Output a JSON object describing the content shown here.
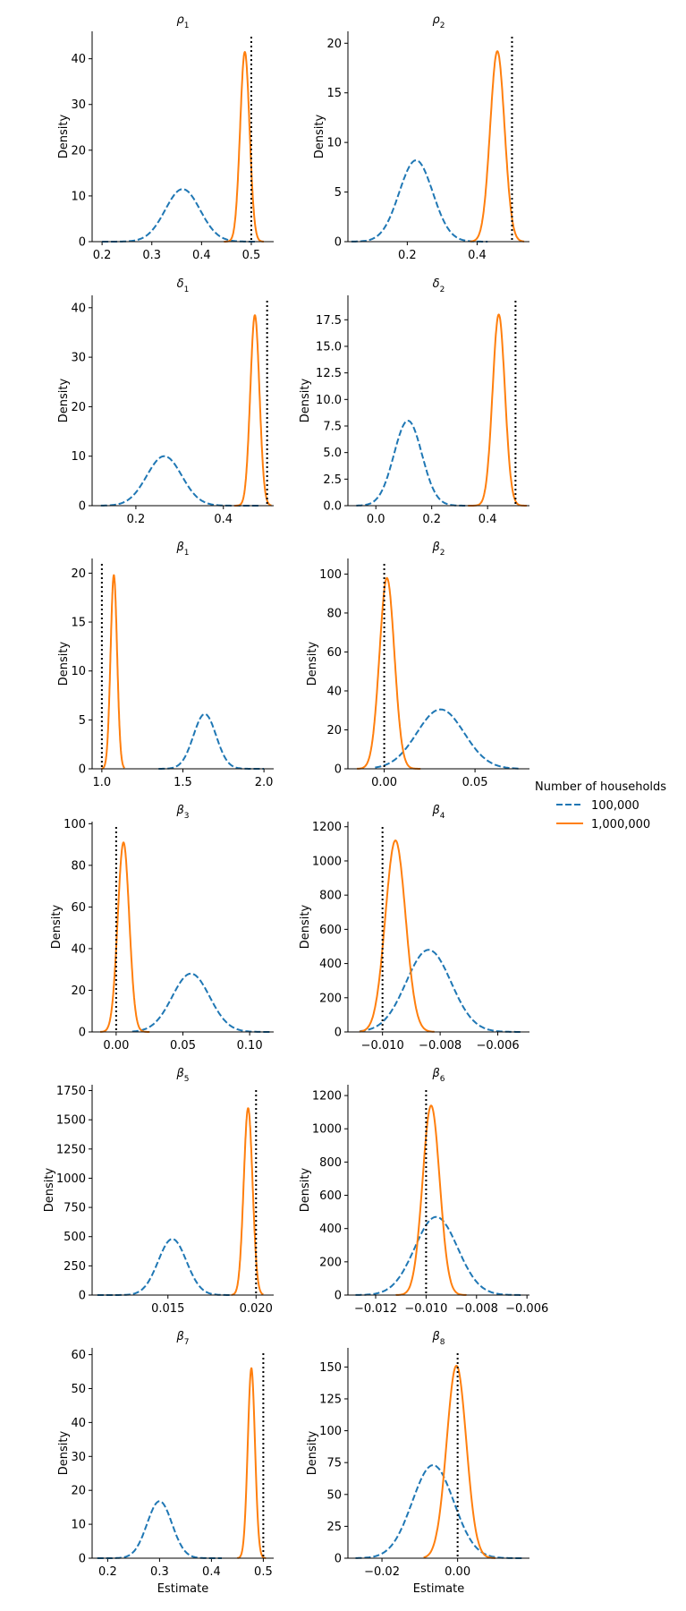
{
  "legend": {
    "title": "Number of households",
    "items": [
      {
        "label": "100,000",
        "color": "#1f77b4",
        "dash": true
      },
      {
        "label": "1,000,000",
        "color": "#ff7f0e",
        "dash": false
      }
    ]
  },
  "chart_data": [
    {
      "type": "line",
      "title_sym": "ρ",
      "title_sub": "1",
      "ylabel": "Density",
      "xlabel": "",
      "xlim": [
        0.18,
        0.545
      ],
      "ylim": [
        0,
        46
      ],
      "xticks": [
        0.2,
        0.3,
        0.4,
        0.5
      ],
      "xtick_labels": [
        "0.2",
        "0.3",
        "0.4",
        "0.5"
      ],
      "yticks": [
        0,
        10,
        20,
        30,
        40
      ],
      "ytick_labels": [
        "0",
        "10",
        "20",
        "30",
        "40"
      ],
      "truth": 0.5,
      "series": [
        {
          "name": "100,000",
          "peaks": [
            [
              0.362,
              0.035,
              11.5
            ]
          ],
          "range": [
            0.2,
            0.51
          ]
        },
        {
          "name": "1,000,000",
          "peaks": [
            [
              0.487,
              0.0094,
              41.5
            ]
          ],
          "range": [
            0.445,
            0.525
          ]
        }
      ]
    },
    {
      "type": "line",
      "title_sym": "ρ",
      "title_sub": "2",
      "ylabel": "Density",
      "xlabel": "",
      "xlim": [
        0.03,
        0.55
      ],
      "ylim": [
        0,
        21.2
      ],
      "xticks": [
        0.2,
        0.4
      ],
      "xtick_labels": [
        "0.2",
        "0.4"
      ],
      "yticks": [
        0,
        5,
        10,
        15,
        20
      ],
      "ytick_labels": [
        "0",
        "5",
        "10",
        "15",
        "20"
      ],
      "truth": 0.5,
      "series": [
        {
          "name": "100,000",
          "peaks": [
            [
              0.225,
              0.048,
              8.2
            ]
          ],
          "range": [
            0.04,
            0.43
          ]
        },
        {
          "name": "1,000,000",
          "peaks": [
            [
              0.458,
              0.0205,
              19.2
            ]
          ],
          "range": [
            0.38,
            0.535
          ]
        }
      ]
    },
    {
      "type": "line",
      "title_sym": "δ",
      "title_sub": "1",
      "ylabel": "Density",
      "xlabel": "",
      "xlim": [
        0.1,
        0.515
      ],
      "ylim": [
        0,
        42.5
      ],
      "xticks": [
        0.2,
        0.4
      ],
      "xtick_labels": [
        "0.2",
        "0.4"
      ],
      "yticks": [
        0,
        10,
        20,
        30,
        40
      ],
      "ytick_labels": [
        "0",
        "10",
        "20",
        "30",
        "40"
      ],
      "truth": 0.5,
      "series": [
        {
          "name": "100,000",
          "peaks": [
            [
              0.265,
              0.04,
              10.0
            ]
          ],
          "range": [
            0.12,
            0.48
          ]
        },
        {
          "name": "1,000,000",
          "peaks": [
            [
              0.472,
              0.0104,
              38.5
            ]
          ],
          "range": [
            0.425,
            0.51
          ]
        }
      ]
    },
    {
      "type": "line",
      "title_sym": "δ",
      "title_sub": "2",
      "ylabel": "Density",
      "xlabel": "",
      "xlim": [
        -0.1,
        0.55
      ],
      "ylim": [
        0,
        19.8
      ],
      "xticks": [
        0.0,
        0.2,
        0.4
      ],
      "xtick_labels": [
        "0.0",
        "0.2",
        "0.4"
      ],
      "yticks": [
        0,
        2.5,
        5.0,
        7.5,
        10.0,
        12.5,
        15.0,
        17.5
      ],
      "ytick_labels": [
        "0.0",
        "2.5",
        "5.0",
        "7.5",
        "10.0",
        "12.5",
        "15.0",
        "17.5"
      ],
      "truth": 0.5,
      "series": [
        {
          "name": "100,000",
          "peaks": [
            [
              0.115,
              0.05,
              8.0
            ]
          ],
          "range": [
            -0.07,
            0.32
          ]
        },
        {
          "name": "1,000,000",
          "peaks": [
            [
              0.44,
              0.022,
              18.0
            ]
          ],
          "range": [
            0.33,
            0.54
          ]
        }
      ]
    },
    {
      "type": "line",
      "title_sym": "β",
      "title_sub": "1",
      "ylabel": "Density",
      "xlabel": "",
      "xlim": [
        0.94,
        2.06
      ],
      "ylim": [
        0,
        21.5
      ],
      "xticks": [
        1.0,
        1.5,
        2.0
      ],
      "xtick_labels": [
        "1.0",
        "1.5",
        "2.0"
      ],
      "yticks": [
        0,
        5,
        10,
        15,
        20
      ],
      "ytick_labels": [
        "0",
        "5",
        "10",
        "15",
        "20"
      ],
      "truth": 1.0,
      "series": [
        {
          "name": "100,000",
          "peaks": [
            [
              1.635,
              0.07,
              5.6
            ]
          ],
          "range": [
            1.35,
            2.0
          ]
        },
        {
          "name": "1,000,000",
          "peaks": [
            [
              1.074,
              0.02,
              19.8
            ]
          ],
          "range": [
            1.0,
            1.14
          ]
        }
      ]
    },
    {
      "type": "line",
      "title_sym": "β",
      "title_sub": "2",
      "ylabel": "Density",
      "xlabel": "",
      "xlim": [
        -0.02,
        0.08
      ],
      "ylim": [
        0,
        108
      ],
      "xticks": [
        0.0,
        0.05
      ],
      "xtick_labels": [
        "0.00",
        "0.05"
      ],
      "yticks": [
        0,
        20,
        40,
        60,
        80,
        100
      ],
      "ytick_labels": [
        "0",
        "20",
        "40",
        "60",
        "80",
        "100"
      ],
      "truth": 0.0,
      "series": [
        {
          "name": "100,000",
          "peaks": [
            [
              0.031,
              0.013,
              30.5
            ]
          ],
          "range": [
            -0.005,
            0.075
          ]
        },
        {
          "name": "1,000,000",
          "peaks": [
            [
              0.0015,
              0.0041,
              98.0
            ]
          ],
          "range": [
            -0.015,
            0.02
          ]
        }
      ]
    },
    {
      "type": "line",
      "title_sym": "β",
      "title_sub": "3",
      "ylabel": "Density",
      "xlabel": "",
      "xlim": [
        -0.018,
        0.118
      ],
      "ylim": [
        0,
        101
      ],
      "xticks": [
        0.0,
        0.05,
        0.1
      ],
      "xtick_labels": [
        "0.00",
        "0.05",
        "0.10"
      ],
      "yticks": [
        0,
        20,
        40,
        60,
        80,
        100
      ],
      "ytick_labels": [
        "0",
        "20",
        "40",
        "60",
        "80",
        "100"
      ],
      "truth": 0.0,
      "series": [
        {
          "name": "100,000",
          "peaks": [
            [
              0.056,
              0.014,
              28.0
            ]
          ],
          "range": [
            0.012,
            0.115
          ]
        },
        {
          "name": "1,000,000",
          "peaks": [
            [
              0.0055,
              0.0043,
              91.0
            ]
          ],
          "range": [
            -0.012,
            0.025
          ]
        }
      ]
    },
    {
      "type": "line",
      "title_sym": "β",
      "title_sub": "4",
      "ylabel": "Density",
      "xlabel": "",
      "xlim": [
        -0.0112,
        -0.0049
      ],
      "ylim": [
        0,
        1230
      ],
      "xticks": [
        -0.01,
        -0.008,
        -0.006
      ],
      "xtick_labels": [
        "−0.010",
        "−0.008",
        "−0.006"
      ],
      "yticks": [
        0,
        200,
        400,
        600,
        800,
        1000,
        1200
      ],
      "ytick_labels": [
        "0",
        "200",
        "400",
        "600",
        "800",
        "1000",
        "1200"
      ],
      "truth": -0.01,
      "series": [
        {
          "name": "100,000",
          "peaks": [
            [
              -0.0084,
              0.00078,
              480
            ]
          ],
          "range": [
            -0.0108,
            -0.0052
          ]
        },
        {
          "name": "1,000,000",
          "peaks": [
            [
              -0.00955,
              0.00035,
              1120
            ]
          ],
          "range": [
            -0.0108,
            -0.0082
          ]
        }
      ]
    },
    {
      "type": "line",
      "title_sym": "β",
      "title_sub": "5",
      "ylabel": "Density",
      "xlabel": "",
      "xlim": [
        0.0107,
        0.021
      ],
      "ylim": [
        0,
        1800
      ],
      "xticks": [
        0.015,
        0.02
      ],
      "xtick_labels": [
        "0.015",
        "0.020"
      ],
      "yticks": [
        0,
        250,
        500,
        750,
        1000,
        1250,
        1500,
        1750
      ],
      "ytick_labels": [
        "0",
        "250",
        "500",
        "750",
        "1000",
        "1250",
        "1500",
        "1750"
      ],
      "truth": 0.02,
      "series": [
        {
          "name": "100,000",
          "peaks": [
            [
              0.01525,
              0.0008,
              480
            ]
          ],
          "range": [
            0.011,
            0.0185
          ]
        },
        {
          "name": "1,000,000",
          "peaks": [
            [
              0.01955,
              0.00025,
              1600
            ]
          ],
          "range": [
            0.0186,
            0.0204
          ]
        }
      ]
    },
    {
      "type": "line",
      "title_sym": "β",
      "title_sub": "6",
      "ylabel": "Density",
      "xlabel": "",
      "xlim": [
        -0.0131,
        -0.0059
      ],
      "ylim": [
        0,
        1265
      ],
      "xticks": [
        -0.012,
        -0.01,
        -0.008,
        -0.006
      ],
      "xtick_labels": [
        "−0.012",
        "−0.010",
        "−0.008",
        "−0.006"
      ],
      "yticks": [
        0,
        200,
        400,
        600,
        800,
        1000,
        1200
      ],
      "ytick_labels": [
        "0",
        "200",
        "400",
        "600",
        "800",
        "1000",
        "1200"
      ],
      "truth": -0.01,
      "series": [
        {
          "name": "100,000",
          "peaks": [
            [
              -0.0096,
              0.00085,
              470
            ]
          ],
          "range": [
            -0.0128,
            -0.0062
          ]
        },
        {
          "name": "1,000,000",
          "peaks": [
            [
              -0.0098,
              0.00034,
              1140
            ]
          ],
          "range": [
            -0.0112,
            -0.0084
          ]
        }
      ]
    },
    {
      "type": "line",
      "title_sym": "β",
      "title_sub": "7",
      "ylabel": "Density",
      "xlabel": "Estimate",
      "xlim": [
        0.17,
        0.52
      ],
      "ylim": [
        0,
        62
      ],
      "xticks": [
        0.2,
        0.3,
        0.4,
        0.5
      ],
      "xtick_labels": [
        "0.2",
        "0.3",
        "0.4",
        "0.5"
      ],
      "yticks": [
        0,
        10,
        20,
        30,
        40,
        50,
        60
      ],
      "ytick_labels": [
        "0",
        "10",
        "20",
        "30",
        "40",
        "50",
        "60"
      ],
      "truth": 0.5,
      "series": [
        {
          "name": "100,000",
          "peaks": [
            [
              0.3,
              0.024,
              16.8
            ]
          ],
          "range": [
            0.18,
            0.42
          ]
        },
        {
          "name": "1,000,000",
          "peaks": [
            [
              0.477,
              0.007,
              56.0
            ]
          ],
          "range": [
            0.45,
            0.505
          ]
        }
      ]
    },
    {
      "type": "line",
      "title_sym": "β",
      "title_sub": "8",
      "ylabel": "Density",
      "xlabel": "Estimate",
      "xlim": [
        -0.029,
        0.019
      ],
      "ylim": [
        0,
        165
      ],
      "xticks": [
        -0.02,
        0.0
      ],
      "xtick_labels": [
        "−0.02",
        "0.00"
      ],
      "yticks": [
        0,
        25,
        50,
        75,
        100,
        125,
        150
      ],
      "ytick_labels": [
        "0",
        "25",
        "50",
        "75",
        "100",
        "125",
        "150"
      ],
      "truth": 0.0,
      "series": [
        {
          "name": "100,000",
          "peaks": [
            [
              -0.0065,
              0.0055,
              73.0
            ]
          ],
          "range": [
            -0.027,
            0.017
          ]
        },
        {
          "name": "1,000,000",
          "peaks": [
            [
              -0.0003,
              0.0026,
              151.0
            ]
          ],
          "range": [
            -0.009,
            0.01
          ]
        }
      ]
    }
  ]
}
